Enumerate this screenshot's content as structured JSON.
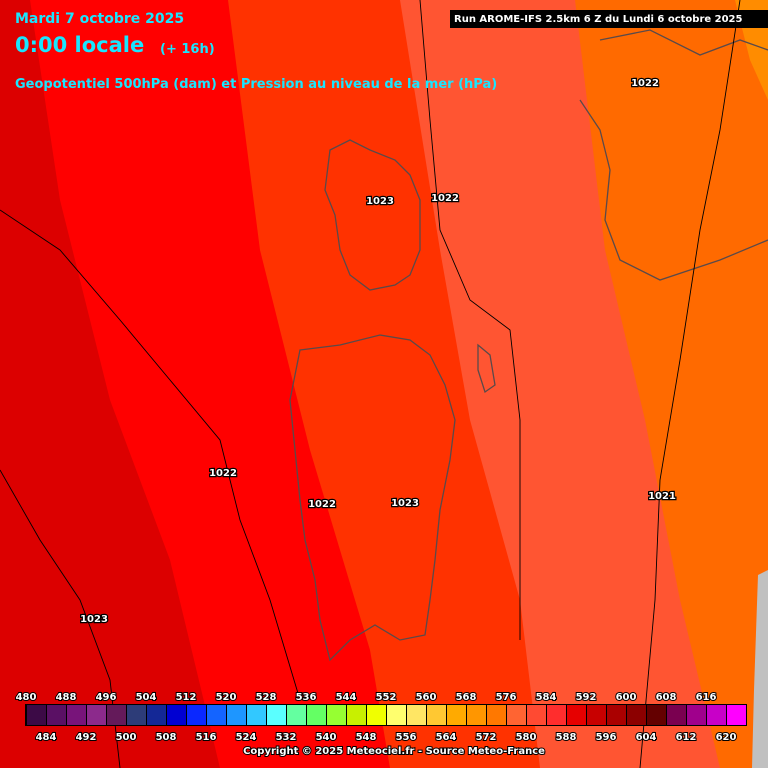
{
  "header": {
    "date": "Mardi 7 octobre 2025",
    "time": "0:00 locale",
    "lead": "(+ 16h)",
    "title": "Geopotentiel 500hPa (dam) et Pression au niveau de la mer (hPa)",
    "run": "Run AROME-IFS 2.5km 6 Z du Lundi 6 octobre 2025"
  },
  "isobar_labels": [
    "1022",
    "1023",
    "1022",
    "1022",
    "1022",
    "1023",
    "1021",
    "1023"
  ],
  "legend": {
    "top_labels": [
      480,
      488,
      496,
      504,
      512,
      520,
      528,
      536,
      544,
      552,
      560,
      568,
      576,
      584,
      592,
      600,
      608,
      616
    ],
    "bottom_labels": [
      484,
      492,
      500,
      508,
      516,
      524,
      532,
      540,
      548,
      556,
      564,
      572,
      580,
      588,
      596,
      604,
      612,
      620
    ],
    "colors": [
      "#3c0a46",
      "#5a1064",
      "#78147a",
      "#8c2a8c",
      "#641a5a",
      "#2d3c78",
      "#142896",
      "#0000d2",
      "#0a28ff",
      "#1464ff",
      "#1e96ff",
      "#32c8ff",
      "#5affff",
      "#64ffa0",
      "#64ff64",
      "#96ff32",
      "#c8f000",
      "#f0ff00",
      "#ffff6e",
      "#ffe664",
      "#ffc832",
      "#ffaa00",
      "#ff9600",
      "#ff7800",
      "#ff6432",
      "#ff4a32",
      "#ff2d2d",
      "#e60000",
      "#c80000",
      "#aa0000",
      "#8c0000",
      "#640000",
      "#7a0050",
      "#a0008c",
      "#c800c8",
      "#ff00ff"
    ]
  },
  "footer": "Copyright © 2025 Meteociel.fr - Source Meteo-France"
}
